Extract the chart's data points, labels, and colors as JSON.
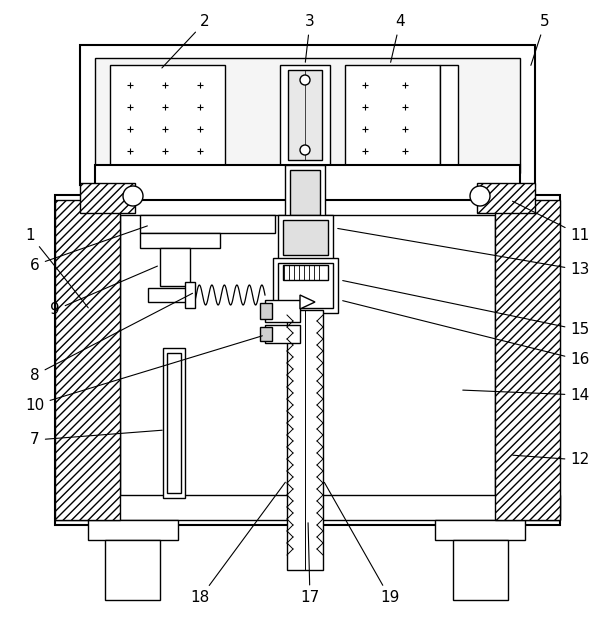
{
  "background": "#ffffff",
  "line_color": "#000000",
  "gray_color": "#888888",
  "light_gray": "#d0d0d0",
  "label_fs": 11
}
